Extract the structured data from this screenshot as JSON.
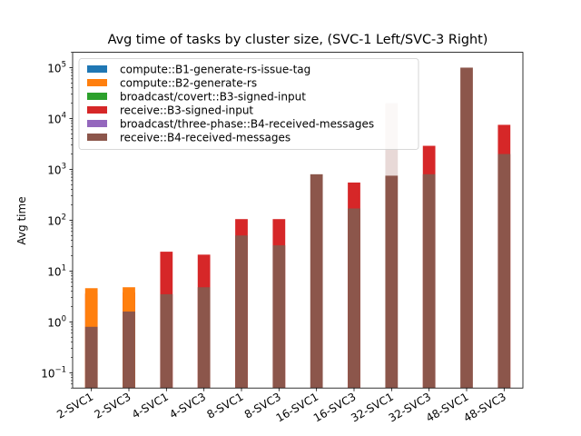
{
  "chart_data": {
    "type": "bar",
    "stacked": true,
    "title": "Avg time of tasks by cluster size, (SVC-1 Left/SVC-3 Right)",
    "xlabel": "",
    "ylabel": "Avg time",
    "yscale": "log",
    "ylim": [
      0.05,
      200000
    ],
    "yticks": [
      {
        "value": 0.1,
        "base": "10",
        "exp": "−1"
      },
      {
        "value": 1,
        "base": "10",
        "exp": "0"
      },
      {
        "value": 10,
        "base": "10",
        "exp": "1"
      },
      {
        "value": 100,
        "base": "10",
        "exp": "2"
      },
      {
        "value": 1000,
        "base": "10",
        "exp": "3"
      },
      {
        "value": 10000,
        "base": "10",
        "exp": "4"
      },
      {
        "value": 100000,
        "base": "10",
        "exp": "5"
      }
    ],
    "grid": false,
    "legend_position": "top-left",
    "categories": [
      "2-SVC1",
      "2-SVC3",
      "4-SVC1",
      "4-SVC3",
      "8-SVC1",
      "8-SVC3",
      "16-SVC1",
      "16-SVC3",
      "32-SVC1",
      "32-SVC3",
      "48-SVC1",
      "48-SVC3"
    ],
    "series": [
      {
        "name": "compute::B1-generate-rs-issue-tag",
        "color": "#1f77b4",
        "values": [
          0,
          0,
          0,
          0,
          0,
          0,
          0,
          0,
          0,
          0,
          0,
          0
        ]
      },
      {
        "name": "compute::B2-generate-rs",
        "color": "#ff7f0e",
        "values": [
          4.6,
          4.8,
          0,
          0,
          0,
          0,
          0,
          0,
          0,
          0,
          0,
          0
        ]
      },
      {
        "name": "broadcast/covert::B3-signed-input",
        "color": "#2ca02c",
        "values": [
          0,
          0,
          0,
          0,
          0,
          0,
          0,
          0,
          0,
          0,
          0,
          0
        ]
      },
      {
        "name": "receive::B3-signed-input",
        "color": "#d62728",
        "values": [
          3.6,
          3.8,
          24,
          21,
          105,
          105,
          0,
          550,
          20000,
          2900,
          0,
          7500
        ]
      },
      {
        "name": "broadcast/three-phase::B4-received-messages",
        "color": "#9467bd",
        "values": [
          0,
          0,
          0,
          0,
          0,
          0,
          0,
          0,
          0,
          0,
          0,
          0
        ]
      },
      {
        "name": "receive::B4-received-messages",
        "color": "#8c564b",
        "values": [
          0.8,
          1.6,
          3.5,
          4.8,
          50,
          32,
          800,
          170,
          750,
          800,
          100000,
          2000
        ]
      }
    ],
    "overlay_color": "#e8d9d7"
  }
}
